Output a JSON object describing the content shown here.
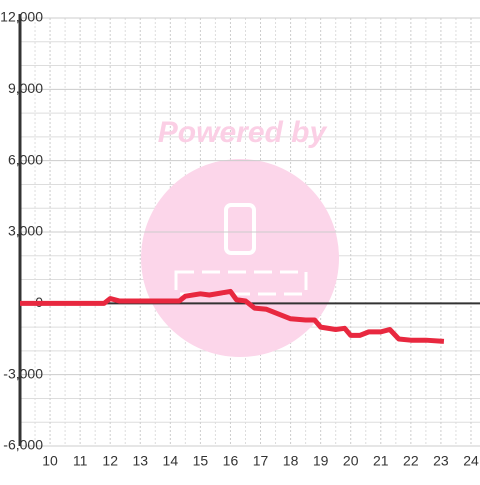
{
  "chart_data": {
    "type": "line",
    "watermark": "Powered by",
    "x": [
      9,
      11.8,
      12.0,
      12.3,
      13,
      14.3,
      14.5,
      15,
      15.3,
      16,
      16.2,
      16.5,
      16.8,
      17.2,
      18,
      18.5,
      18.8,
      19,
      19.5,
      19.8,
      20,
      20.3,
      20.6,
      21,
      21.3,
      21.6,
      22,
      22.5,
      23.1
    ],
    "series": [
      {
        "color": "#e8283f",
        "values": [
          0,
          0,
          200,
          100,
          100,
          100,
          300,
          400,
          350,
          500,
          150,
          100,
          -200,
          -250,
          -650,
          -700,
          -700,
          -1000,
          -1100,
          -1050,
          -1350,
          -1350,
          -1200,
          -1200,
          -1100,
          -1500,
          -1550,
          -1550,
          -1600
        ]
      }
    ],
    "xlim": [
      9,
      24.3
    ],
    "xticks": [
      10,
      11,
      12,
      13,
      14,
      15,
      16,
      17,
      18,
      19,
      20,
      21,
      22,
      23,
      24
    ],
    "ylim": [
      -6000,
      12000
    ],
    "yticks": [
      {
        "value": 12000,
        "label": "12,000"
      },
      {
        "value": 9000,
        "label": "9,000"
      },
      {
        "value": 6000,
        "label": "6,000"
      },
      {
        "value": 3000,
        "label": "3,000"
      },
      0,
      {
        "value": -3000,
        "label": "-3,000"
      },
      {
        "value": -6000,
        "label": "-6,000"
      }
    ],
    "grid": true
  }
}
